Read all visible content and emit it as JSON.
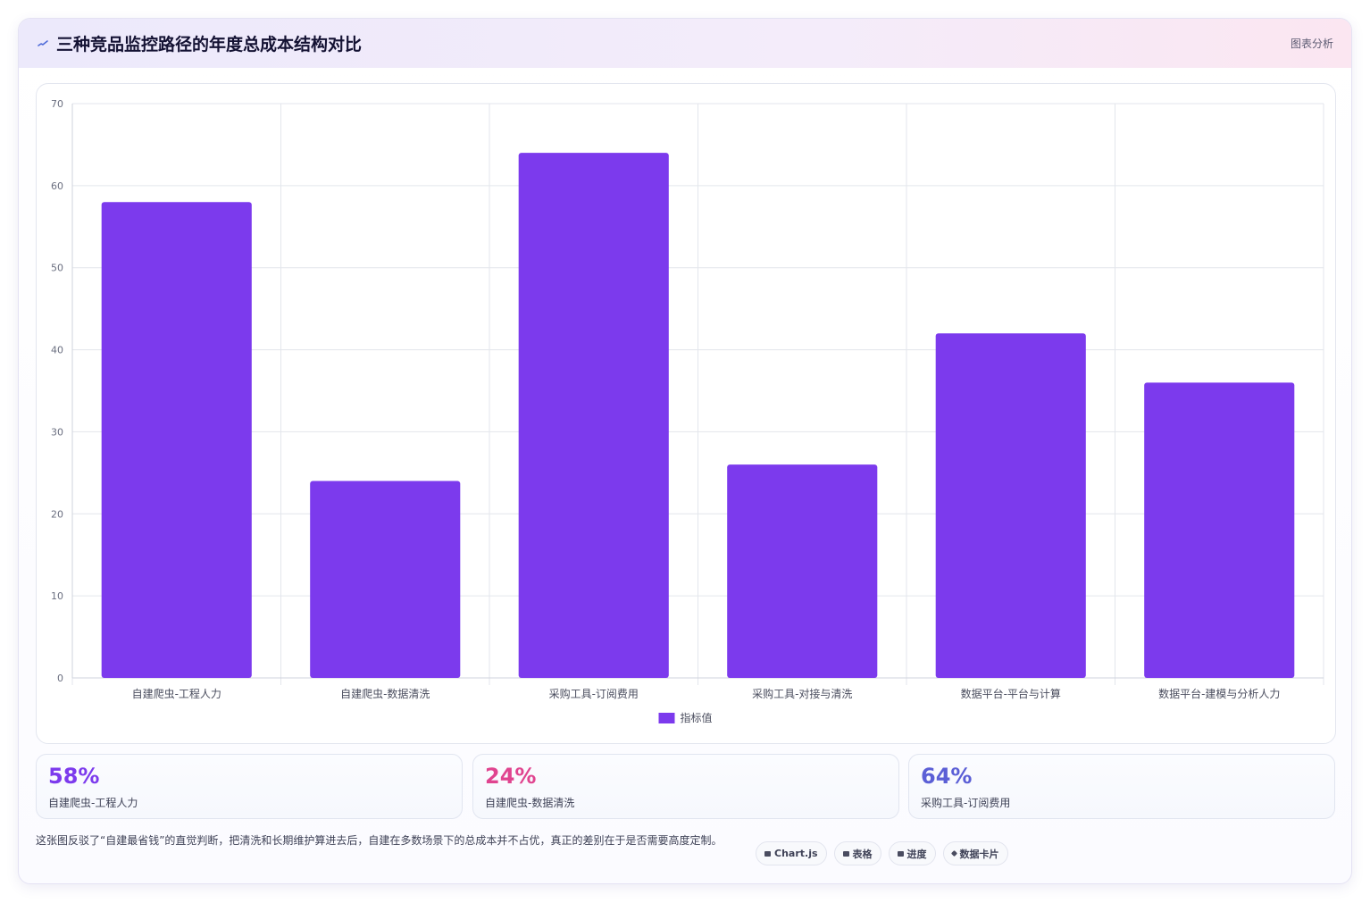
{
  "header": {
    "title": "三种竞品监控路径的年度总成本结构对比",
    "tag": "图表分析",
    "icon": "trend-line-icon"
  },
  "chart_data": {
    "type": "bar",
    "categories": [
      "自建爬虫-工程人力",
      "自建爬虫-数据清洗",
      "采购工具-订阅费用",
      "采购工具-对接与清洗",
      "数据平台-平台与计算",
      "数据平台-建模与分析人力"
    ],
    "series": [
      {
        "name": "指标值",
        "values": [
          58,
          24,
          64,
          26,
          42,
          36
        ],
        "color": "#7c3aed"
      }
    ],
    "ylim": [
      0,
      70
    ],
    "yticks": [
      0,
      10,
      20,
      30,
      40,
      50,
      60,
      70
    ],
    "grid": true,
    "legend": "bottom"
  },
  "stats": [
    {
      "value": "58%",
      "label": "自建爬虫-工程人力",
      "color": "#7c3aed"
    },
    {
      "value": "24%",
      "label": "自建爬虫-数据清洗",
      "color": "#e0448f"
    },
    {
      "value": "64%",
      "label": "采购工具-订阅费用",
      "color": "#5b5fd6"
    }
  ],
  "footer": {
    "text": "这张图反驳了“自建最省钱”的直觉判断，把清洗和长期维护算进去后，自建在多数场景下的总成本并不占优，真正的差别在于是否需要高度定制。",
    "pills": [
      {
        "label": "Chart.js",
        "icon": "chart-icon"
      },
      {
        "label": "表格",
        "icon": "table-icon"
      },
      {
        "label": "进度",
        "icon": "folder-icon"
      },
      {
        "label": "数据卡片",
        "icon": "sparkle-icon"
      }
    ]
  }
}
